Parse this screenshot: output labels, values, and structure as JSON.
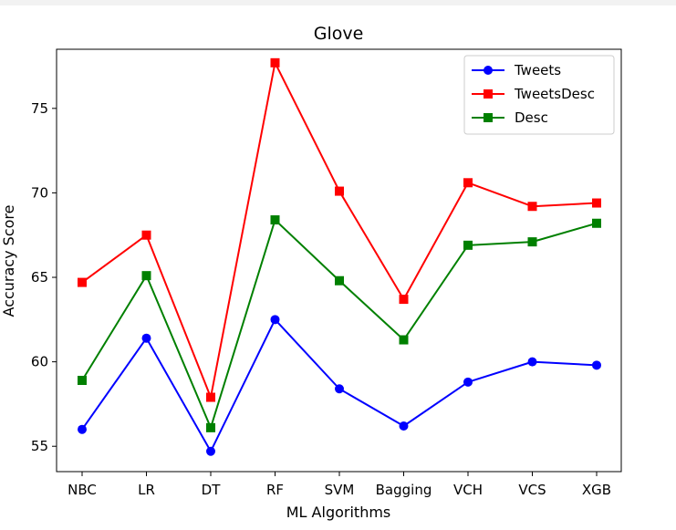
{
  "chart_data": {
    "type": "line",
    "title": "Glove",
    "xlabel": "ML Algorithms",
    "ylabel": "Accuracy Score",
    "categories": [
      "NBC",
      "LR",
      "DT",
      "RF",
      "SVM",
      "Bagging",
      "VCH",
      "VCS",
      "XGB"
    ],
    "ylim": [
      53.5,
      78.5
    ],
    "yticks": [
      55,
      60,
      65,
      70,
      75
    ],
    "grid": false,
    "legend_position": "top-right",
    "series": [
      {
        "name": "Tweets",
        "color": "#0000ff",
        "marker": "circle",
        "values": [
          56.0,
          61.4,
          54.7,
          62.5,
          58.4,
          56.2,
          58.8,
          60.0,
          59.8
        ]
      },
      {
        "name": "TweetsDesc",
        "color": "#ff0000",
        "marker": "square",
        "values": [
          64.7,
          67.5,
          57.9,
          77.7,
          70.1,
          63.7,
          70.6,
          69.2,
          69.4
        ]
      },
      {
        "name": "Desc",
        "color": "#008000",
        "marker": "square",
        "values": [
          58.9,
          65.1,
          56.1,
          68.4,
          64.8,
          61.3,
          66.9,
          67.1,
          68.2
        ]
      }
    ]
  }
}
